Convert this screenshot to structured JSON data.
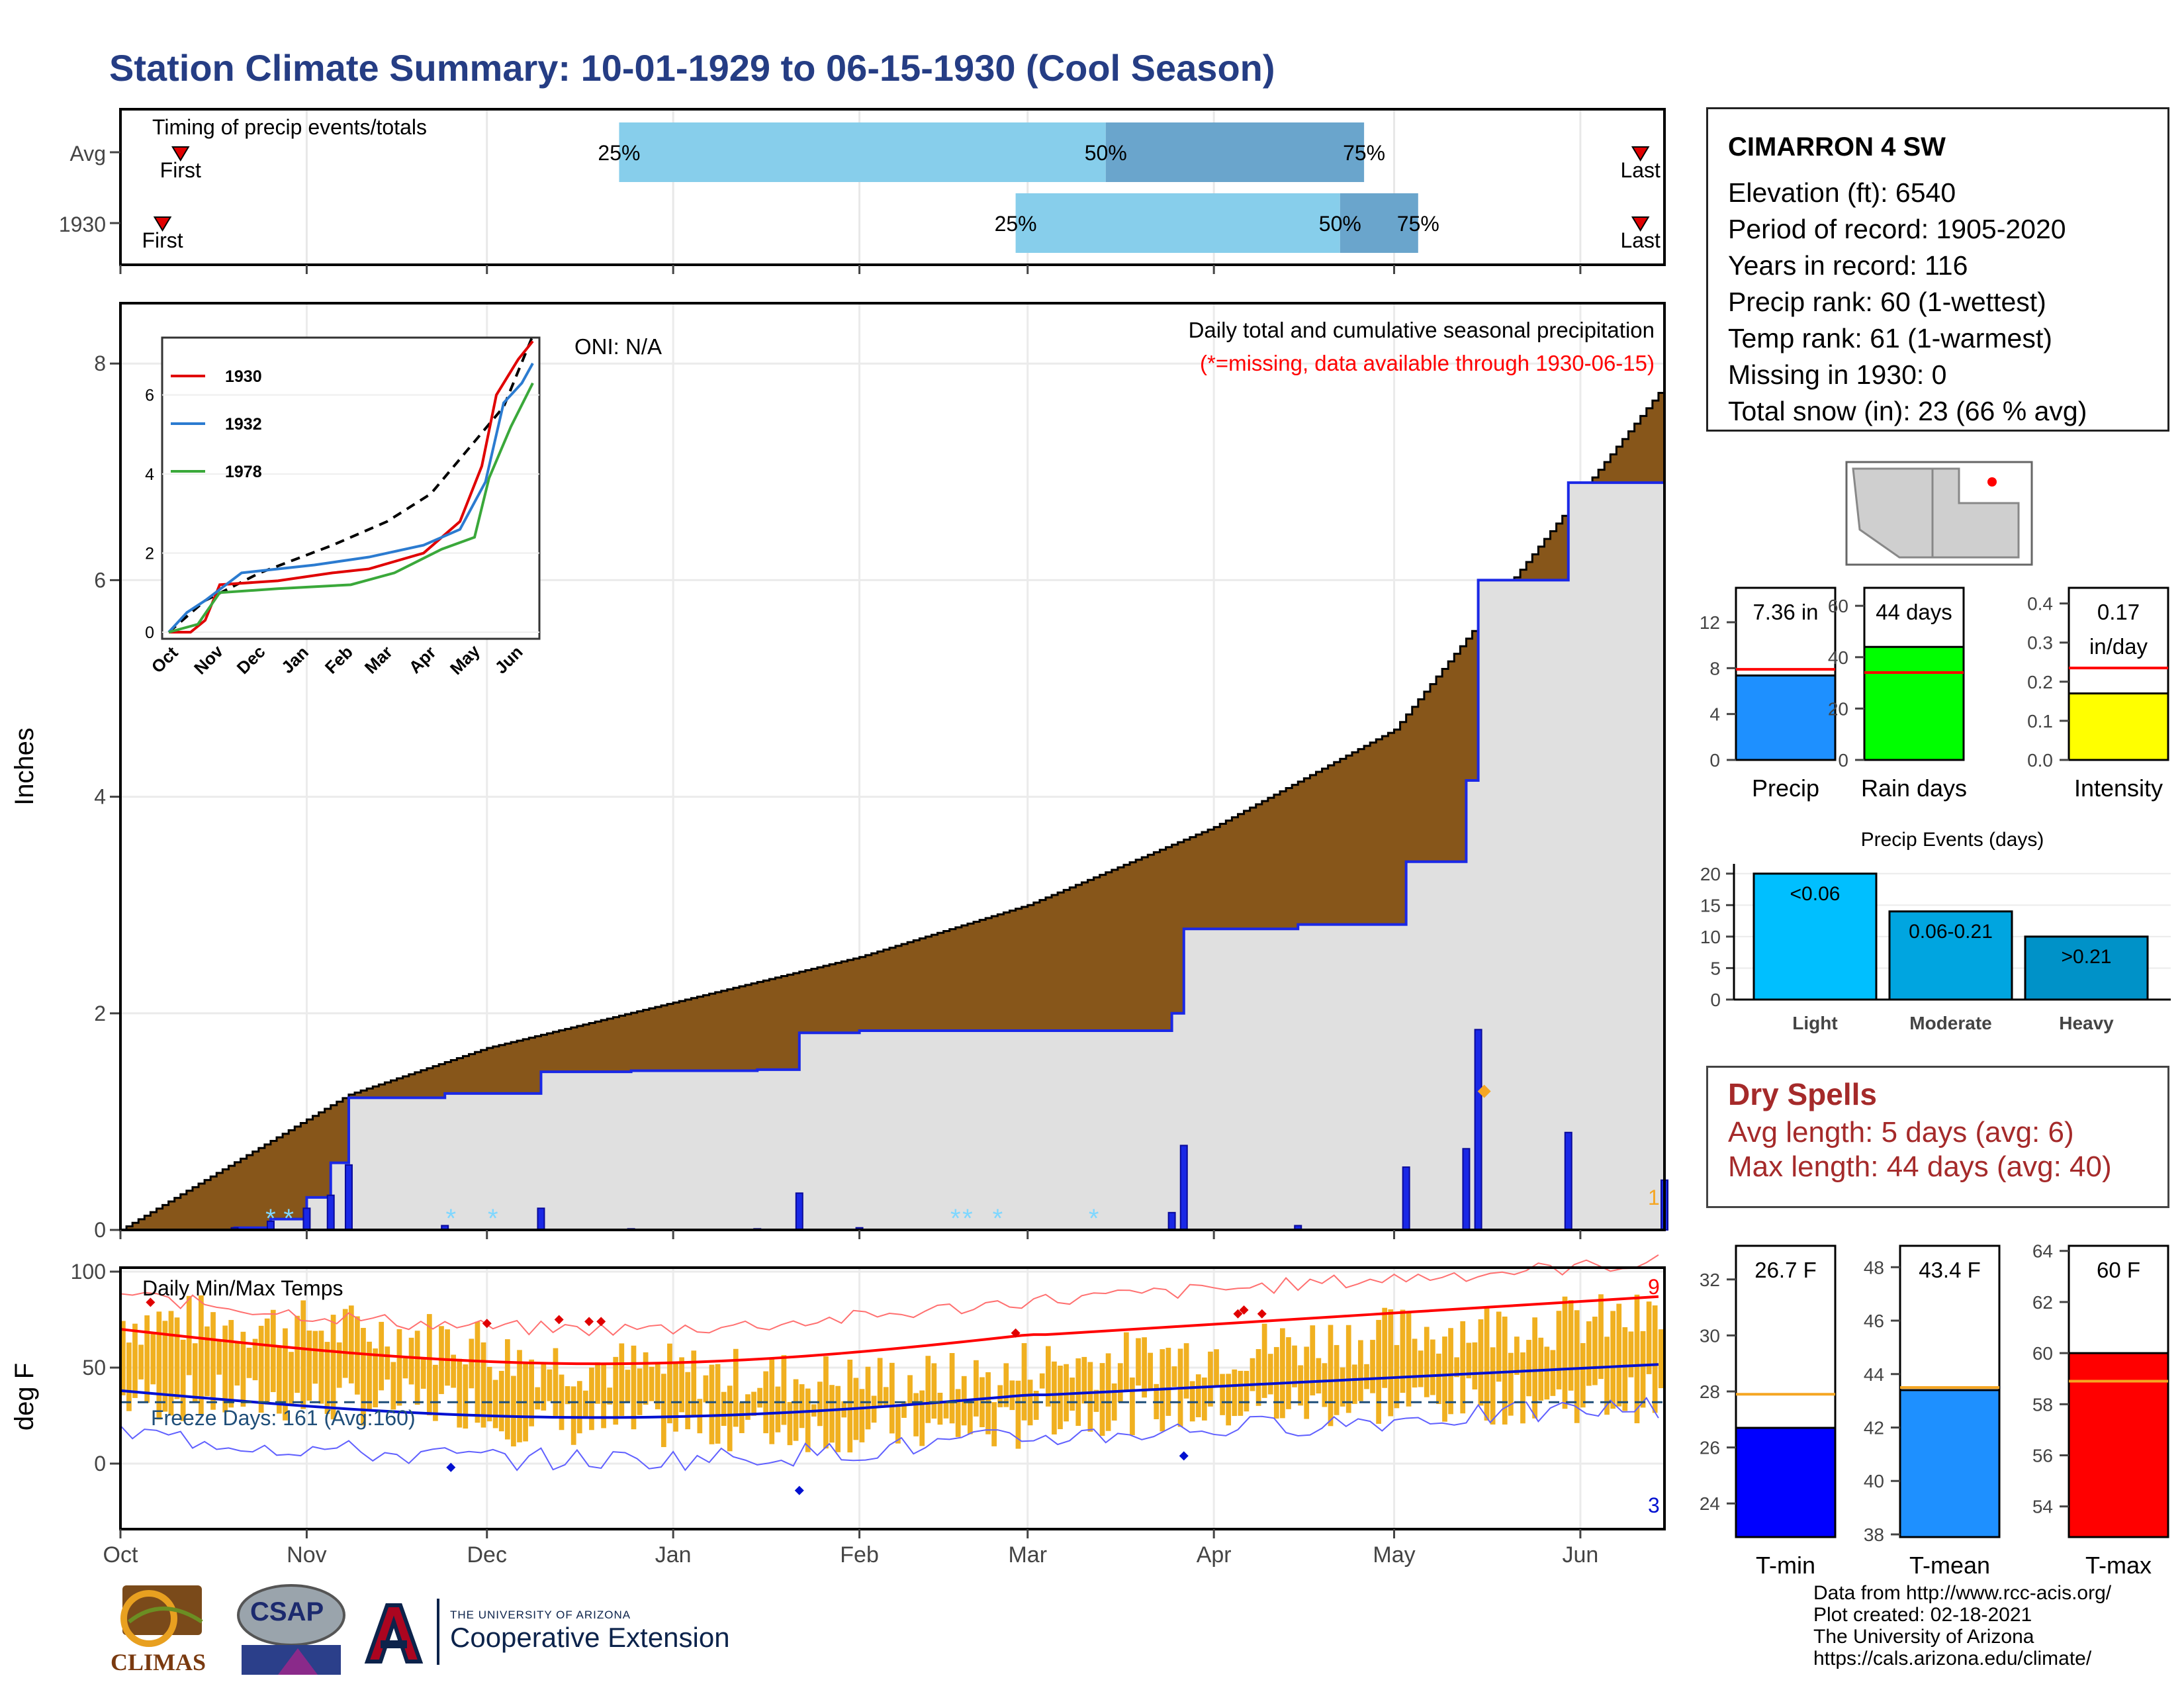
{
  "page_title": "Station Climate Summary: 10-01-1929 to 06-15-1930 (Cool Season)",
  "colors": {
    "title": "#253d84",
    "precip_fill": "#87561a",
    "cum_1930": "#1a28e6",
    "bar_light": "#87ceeb",
    "bar_dark": "#6aa5cc",
    "tmax": "#ff0000",
    "tmin": "#0010d0",
    "temp_bar": "#f0b020"
  },
  "timing": {
    "label": "Timing of precip events/totals",
    "rows": [
      {
        "name": "Avg",
        "p25": "25%",
        "p50": "50%",
        "p75": "75%",
        "first": "First",
        "last": "Last"
      },
      {
        "name": "1930",
        "p25": "25%",
        "p50": "50%",
        "p75": "75%",
        "first": "First",
        "last": "Last"
      }
    ]
  },
  "station": {
    "name": "CIMARRON 4 SW",
    "lines": [
      "Elevation (ft): 6540",
      "Period of record: 1905-2020",
      "Years in record: 116",
      "Precip rank: 60 (1-wettest)",
      "Temp rank: 61 (1-warmest)",
      "Missing in 1930: 0",
      "Total snow (in): 23 (66 % avg)"
    ]
  },
  "main": {
    "ylabel": "Inches",
    "oni": "ONI: N/A",
    "legend_title": "Daily total and cumulative seasonal precipitation",
    "legend_sub": "(*=missing, data available through 1930-06-15)",
    "corner_count": "1"
  },
  "inset": {
    "series": [
      "1930",
      "1932",
      "1978"
    ],
    "months": [
      "Oct",
      "Nov",
      "Dec",
      "Jan",
      "Feb",
      "Mar",
      "Apr",
      "May",
      "Jun"
    ]
  },
  "months": [
    "Oct",
    "Nov",
    "Dec",
    "Jan",
    "Feb",
    "Mar",
    "Apr",
    "May",
    "Jun"
  ],
  "temps": {
    "ylabel": "deg F",
    "title": "Daily Min/Max Temps",
    "freeze": "Freeze Days: 161 (Avg:160)",
    "hot_count": "9",
    "cold_count": "3"
  },
  "mini_precip": [
    {
      "value_label": "7.36 in",
      "label": "Precip",
      "value": 7.36,
      "avg": 7.9,
      "ymax": 15,
      "ticks": [
        "0",
        "4",
        "8",
        "12"
      ]
    },
    {
      "value_label": "44 days",
      "label": "Rain days",
      "value": 44,
      "avg": 34,
      "ymax": 67,
      "ticks": [
        "0",
        "20",
        "40",
        "60"
      ]
    },
    {
      "value_label": "0.17",
      "value_label2": "in/day",
      "label": "Intensity",
      "value": 0.17,
      "avg": 0.235,
      "ymax": 0.44,
      "ticks": [
        "0.0",
        "0.1",
        "0.2",
        "0.3",
        "0.4"
      ]
    }
  ],
  "precip_events": {
    "title": "Precip Events (days)",
    "categories": [
      "Light",
      "Moderate",
      "Heavy"
    ],
    "bar_labels": [
      "<0.06",
      "0.06-0.21",
      ">0.21"
    ],
    "values": [
      20,
      14,
      10
    ],
    "ticks": [
      "0",
      "5",
      "10",
      "15",
      "20"
    ]
  },
  "dry_spells": {
    "title": "Dry Spells",
    "avg_line": "Avg length: 5 days (avg: 6)",
    "max_line": "Max length: 44 days (avg: 40)"
  },
  "mini_temps": [
    {
      "value_label": "26.7 F",
      "label": "T-min",
      "value": 26.7,
      "avg": 27.9,
      "ymin": 22.8,
      "ymax": 33.2,
      "ticks": [
        "24",
        "26",
        "28",
        "30",
        "32"
      ]
    },
    {
      "value_label": "43.4 F",
      "label": "T-mean",
      "value": 43.4,
      "avg": 43.5,
      "ymin": 37.9,
      "ymax": 48.8,
      "ticks": [
        "38",
        "40",
        "42",
        "44",
        "46",
        "48"
      ]
    },
    {
      "value_label": "60 F",
      "label": "T-max",
      "value": 60,
      "avg": 58.9,
      "ymin": 52.8,
      "ymax": 64.2,
      "ticks": [
        "54",
        "56",
        "58",
        "60",
        "62",
        "64"
      ]
    }
  ],
  "chart_data": {
    "type": "area",
    "title": "Daily total and cumulative seasonal precipitation",
    "ylabel": "Inches",
    "ylim": [
      0,
      8.5
    ],
    "x_categories": [
      "Oct",
      "Nov",
      "Dec",
      "Jan",
      "Feb",
      "Mar",
      "Apr",
      "May",
      "Jun"
    ],
    "series": [
      {
        "name": "1930",
        "x": [
          "1929-10-01",
          "1929-10-20",
          "1929-10-26",
          "1929-11-01",
          "1929-11-05",
          "1929-11-08",
          "1929-11-24",
          "1929-12-10",
          "1929-12-25",
          "1930-01-15",
          "1930-01-22",
          "1930-02-01",
          "1930-02-25",
          "1930-03-01",
          "1930-03-15",
          "1930-03-25",
          "1930-03-27",
          "1930-04-15",
          "1930-04-25",
          "1930-05-03",
          "1930-05-13",
          "1930-05-15",
          "1930-05-30",
          "1930-06-15"
        ],
        "values": [
          0,
          0.02,
          0.1,
          0.3,
          0.62,
          1.22,
          1.26,
          1.46,
          1.47,
          1.48,
          1.82,
          1.84,
          1.84,
          1.84,
          1.84,
          2.0,
          2.78,
          2.82,
          2.82,
          3.4,
          4.15,
          6.0,
          6.9,
          7.36
        ]
      },
      {
        "name": "Avg",
        "x": [
          "1929-10-01",
          "1929-11-08",
          "1929-12-01",
          "1930-01-01",
          "1930-02-01",
          "1930-03-01",
          "1930-04-01",
          "1930-05-01",
          "1930-05-15",
          "1930-06-15"
        ],
        "values": [
          0,
          1.25,
          1.68,
          2.1,
          2.52,
          3.0,
          3.72,
          4.62,
          5.6,
          7.8
        ]
      }
    ]
  }
}
